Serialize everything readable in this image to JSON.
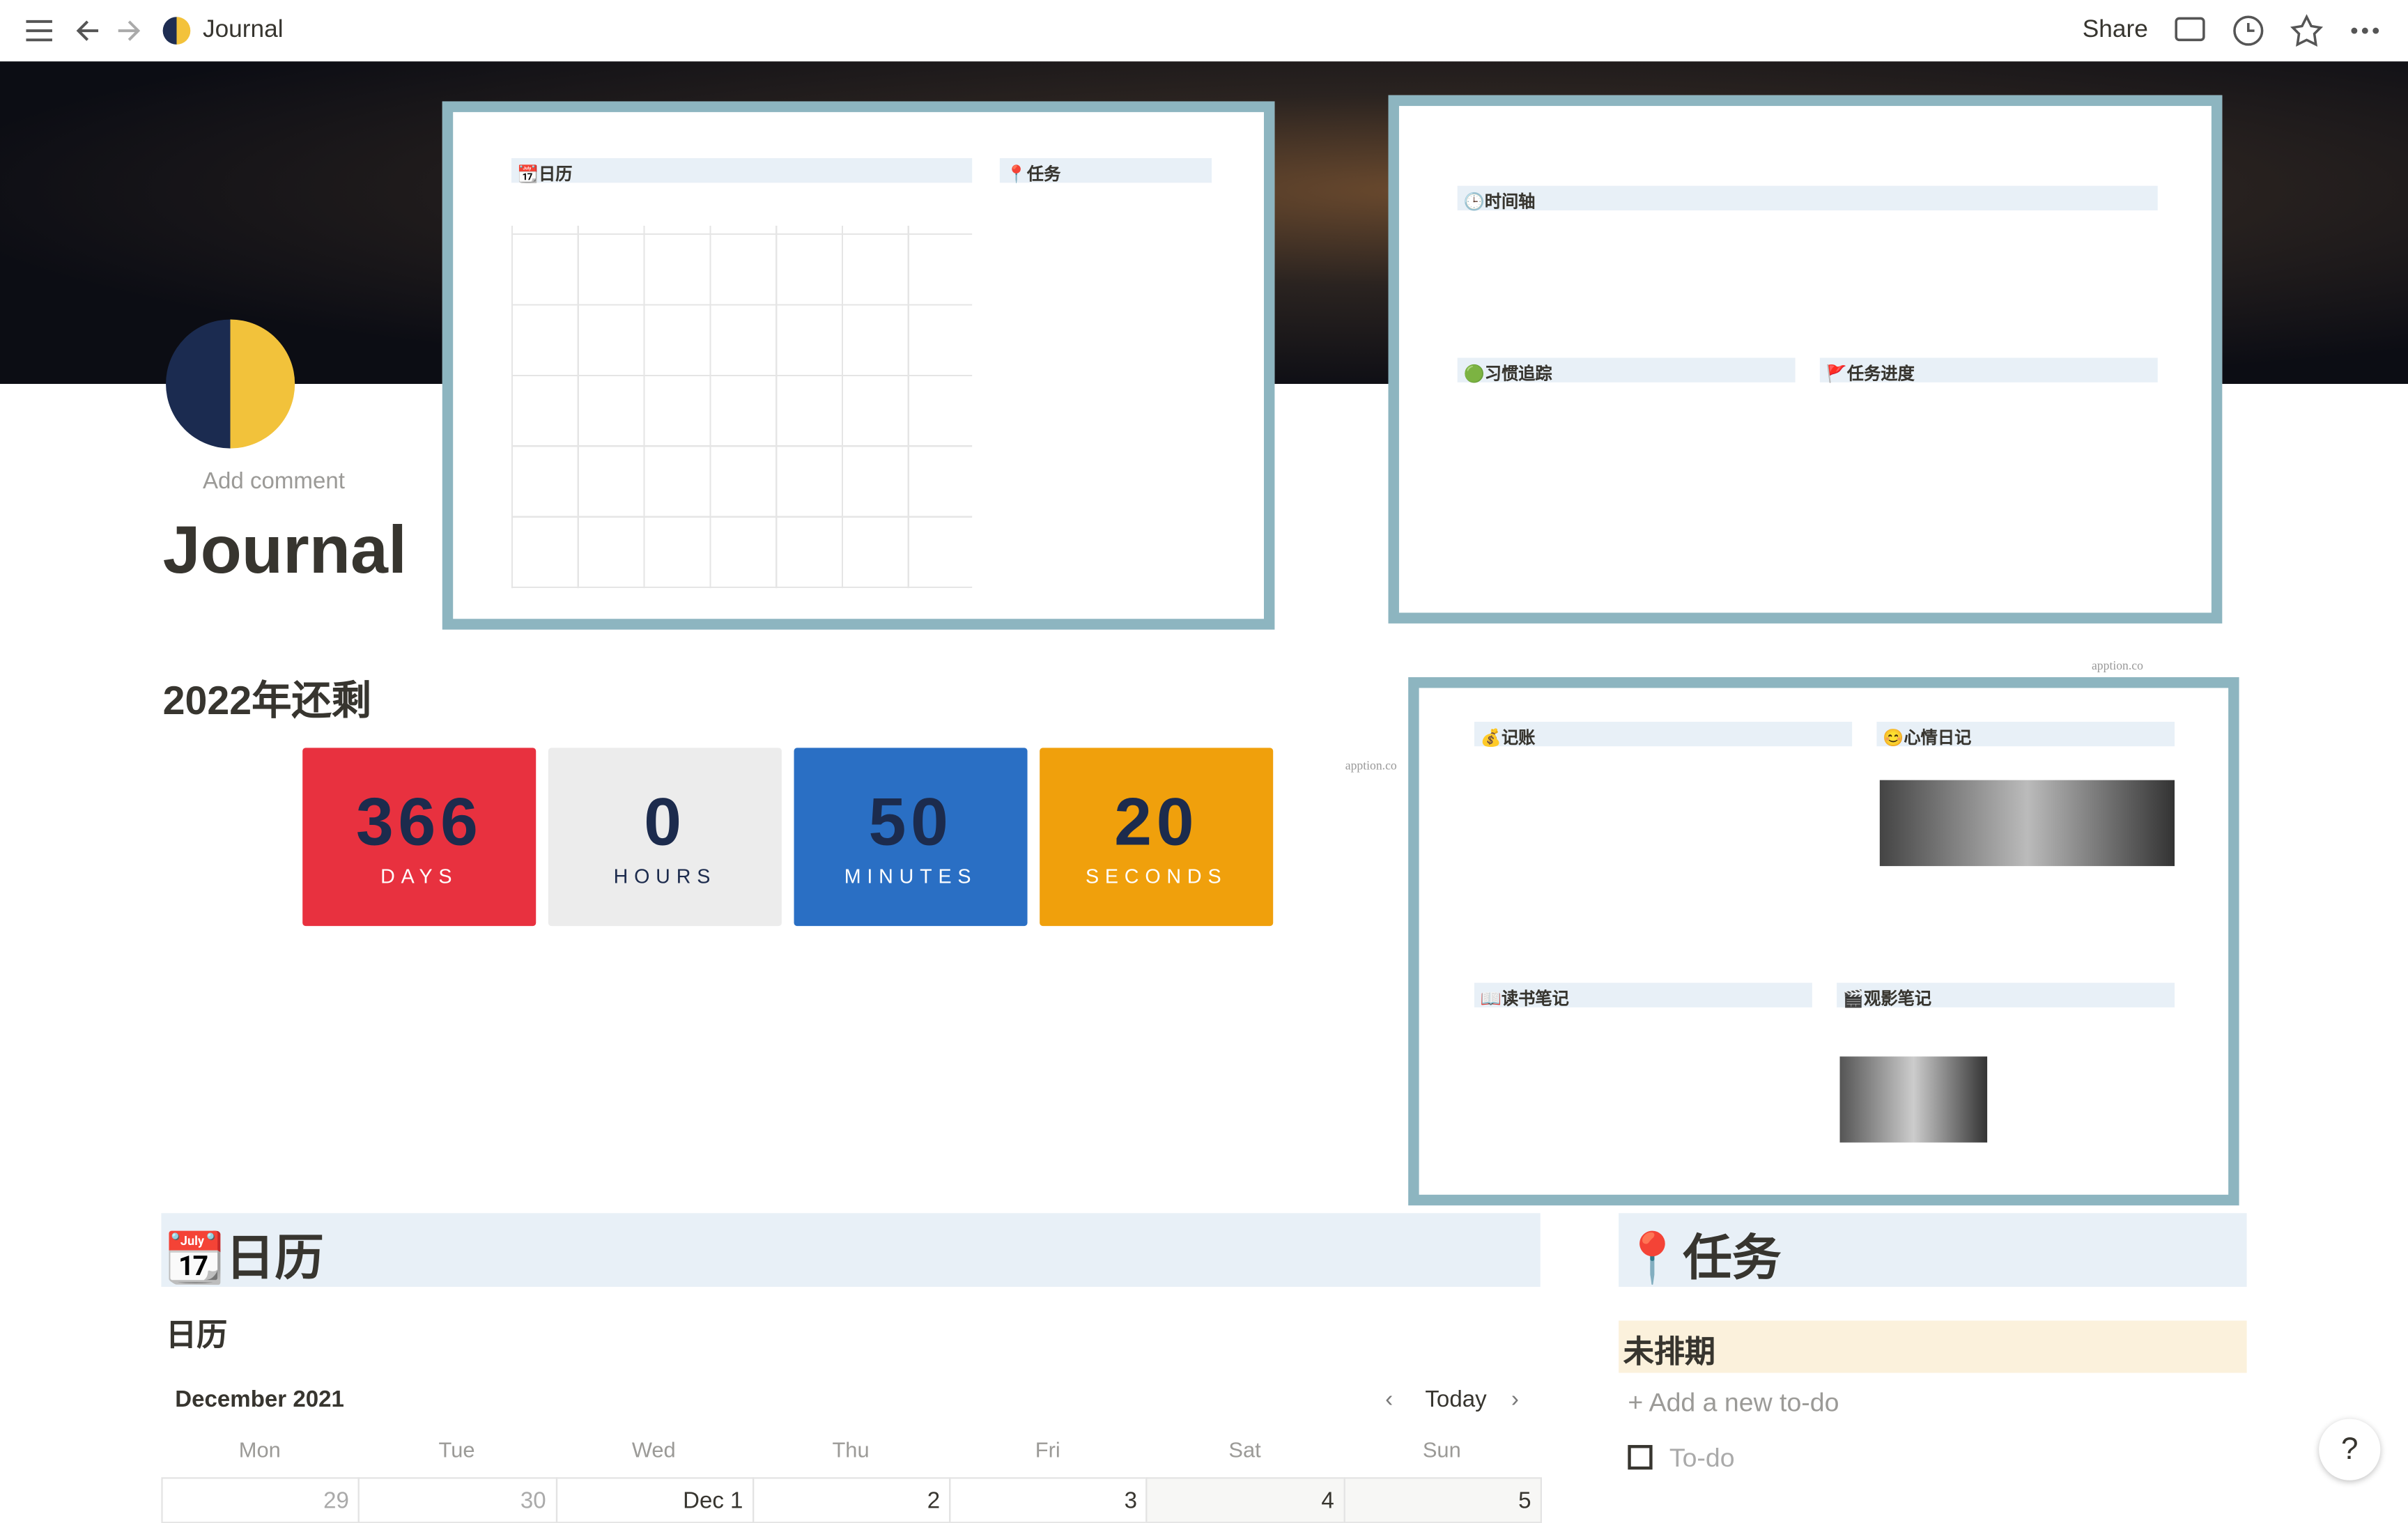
{
  "topbar": {
    "title": "Journal",
    "share": "Share"
  },
  "page": {
    "add_comment": "Add comment",
    "title": "Journal"
  },
  "countdown": {
    "heading": "2022年还剩",
    "items": [
      {
        "value": "366",
        "unit": "DAYS"
      },
      {
        "value": "0",
        "unit": "HOURS"
      },
      {
        "value": "50",
        "unit": "MINUTES"
      },
      {
        "value": "20",
        "unit": "SECONDS"
      }
    ]
  },
  "thumbnails": [
    {
      "headings": [
        "📆日历",
        "📍任务"
      ]
    },
    {
      "headings": [
        "🕒时间轴",
        "🟢习惯追踪",
        "🚩任务进度"
      ]
    },
    {
      "headings": [
        "💰记账",
        "😊心情日记",
        "📖读书笔记",
        "🎬观影笔记"
      ]
    }
  ],
  "watermarks": [
    "apption.co",
    "apption.co"
  ],
  "calendar": {
    "heading": "📆日历",
    "view": "日历",
    "month": "December 2021",
    "today": "Today",
    "weekdays": [
      "Mon",
      "Tue",
      "Wed",
      "Thu",
      "Fri",
      "Sat",
      "Sun"
    ],
    "dates": [
      "29",
      "30",
      "Dec 1",
      "2",
      "3",
      "4",
      "5"
    ]
  },
  "tasks": {
    "heading": "📍任务",
    "group": "未排期",
    "add": "Add a new to-do",
    "item": "To-do"
  },
  "help": "?"
}
